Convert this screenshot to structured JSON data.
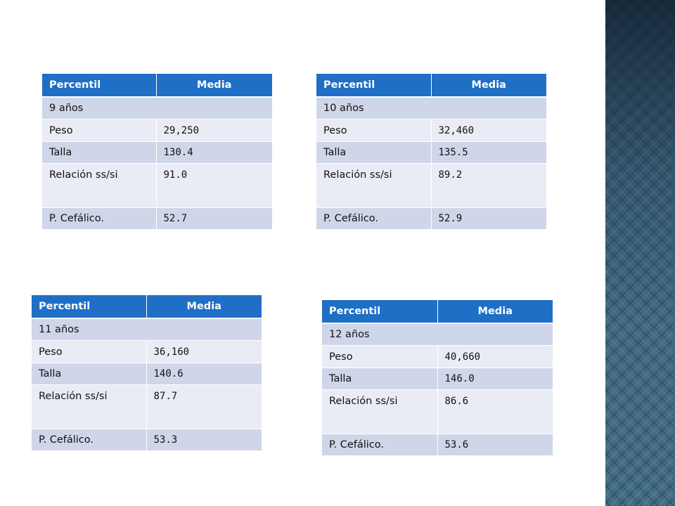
{
  "tables": [
    {
      "header": {
        "col1": "Percentil",
        "col2": "Media"
      },
      "age": "9 años",
      "rows": [
        {
          "label": "Peso",
          "value": "29,250"
        },
        {
          "label": "Talla",
          "value": "130.4"
        },
        {
          "label": "Relación ss/si",
          "value": "91.0"
        },
        {
          "label": "P. Cefálico.",
          "value": "52.7"
        }
      ]
    },
    {
      "header": {
        "col1": "Percentil",
        "col2": "Media"
      },
      "age": "10 años",
      "rows": [
        {
          "label": "Peso",
          "value": "32,460"
        },
        {
          "label": "Talla",
          "value": "135.5"
        },
        {
          "label": "Relación ss/si",
          "value": "89.2"
        },
        {
          "label": "P. Cefálico.",
          "value": "52.9"
        }
      ]
    },
    {
      "header": {
        "col1": "Percentil",
        "col2": "Media"
      },
      "age": "11 años",
      "rows": [
        {
          "label": "Peso",
          "value": "36,160"
        },
        {
          "label": "Talla",
          "value": "140.6"
        },
        {
          "label": "Relación ss/si",
          "value": "87.7"
        },
        {
          "label": "P. Cefálico.",
          "value": "53.3"
        }
      ]
    },
    {
      "header": {
        "col1": "Percentil",
        "col2": "Media"
      },
      "age": "12 años",
      "rows": [
        {
          "label": "Peso",
          "value": "40,660"
        },
        {
          "label": "Talla",
          "value": "146.0"
        },
        {
          "label": "Relación ss/si",
          "value": "86.6"
        },
        {
          "label": "P. Cefálico.",
          "value": "53.6"
        }
      ]
    }
  ],
  "colors": {
    "header_bg": "#1f6fc6",
    "row_dark": "#cfd6e9",
    "row_light": "#e9ecf5",
    "side_panel": "#3f6a86"
  }
}
